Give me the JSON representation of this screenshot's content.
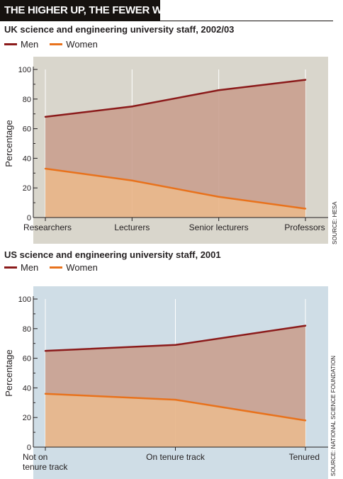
{
  "header": {
    "title": "THE HIGHER UP, THE FEWER WOMEN"
  },
  "colors": {
    "men": "#8b1a1a",
    "women": "#e8721c",
    "men_fill": "#c9a08f",
    "women_fill": "#e8b486",
    "uk_bg": "#d9d6cc",
    "us_bg": "#cfdde6"
  },
  "chart_data": [
    {
      "type": "line",
      "title": "UK science and engineering university staff, 2002/03",
      "ylabel": "Percentage",
      "xlabel": "",
      "categories": [
        "Researchers",
        "Lecturers",
        "Senior lecturers",
        "Professors"
      ],
      "series": [
        {
          "name": "Men",
          "values": [
            68,
            75,
            86,
            93
          ]
        },
        {
          "name": "Women",
          "values": [
            33,
            25,
            14,
            6
          ]
        }
      ],
      "ylim": [
        0,
        100
      ],
      "yticks": [
        0,
        20,
        40,
        60,
        80,
        100
      ],
      "source": "SOURCE: HESA"
    },
    {
      "type": "line",
      "title": "US science and engineering university staff, 2001",
      "ylabel": "Percentage",
      "xlabel": "",
      "categories": [
        "Not on\ntenure track",
        "On tenure track",
        "Tenured"
      ],
      "series": [
        {
          "name": "Men",
          "values": [
            65,
            69,
            82
          ]
        },
        {
          "name": "Women",
          "values": [
            36,
            32,
            18
          ]
        }
      ],
      "ylim": [
        0,
        100
      ],
      "yticks": [
        0,
        20,
        40,
        60,
        80,
        100
      ],
      "source": "SOURCE: NATIONAL SCIENCE FOUNDATION"
    }
  ]
}
